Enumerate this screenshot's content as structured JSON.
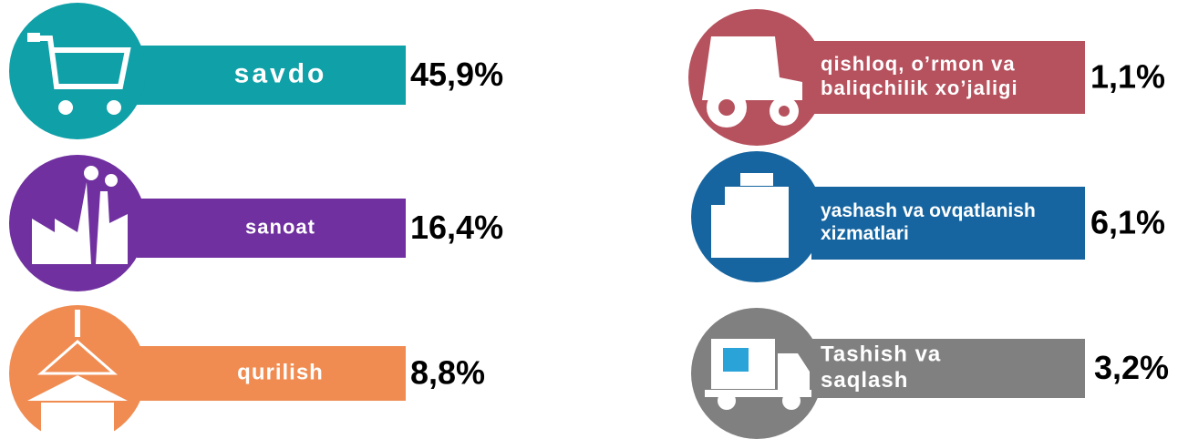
{
  "items": [
    {
      "label": [
        "savdo"
      ],
      "value": "45,9%",
      "color": "#0fa0a8"
    },
    {
      "label": [
        "sanoat"
      ],
      "value": "16,4%",
      "color": "#7030a0"
    },
    {
      "label": [
        "qurilish"
      ],
      "value": "8,8%",
      "color": "#f08c52"
    },
    {
      "label": [
        "qishloq, o’rmon va",
        "baliqchilik xo’jaligi"
      ],
      "value": "1,1%",
      "color": "#b6525e"
    },
    {
      "label": [
        "yashash va ovqatlanish",
        "xizmatlari"
      ],
      "value": "6,1%",
      "color": "#1665a0"
    },
    {
      "label": [
        "Tashish va",
        "saqlash"
      ],
      "value": "3,2%",
      "color": "#808080"
    }
  ]
}
